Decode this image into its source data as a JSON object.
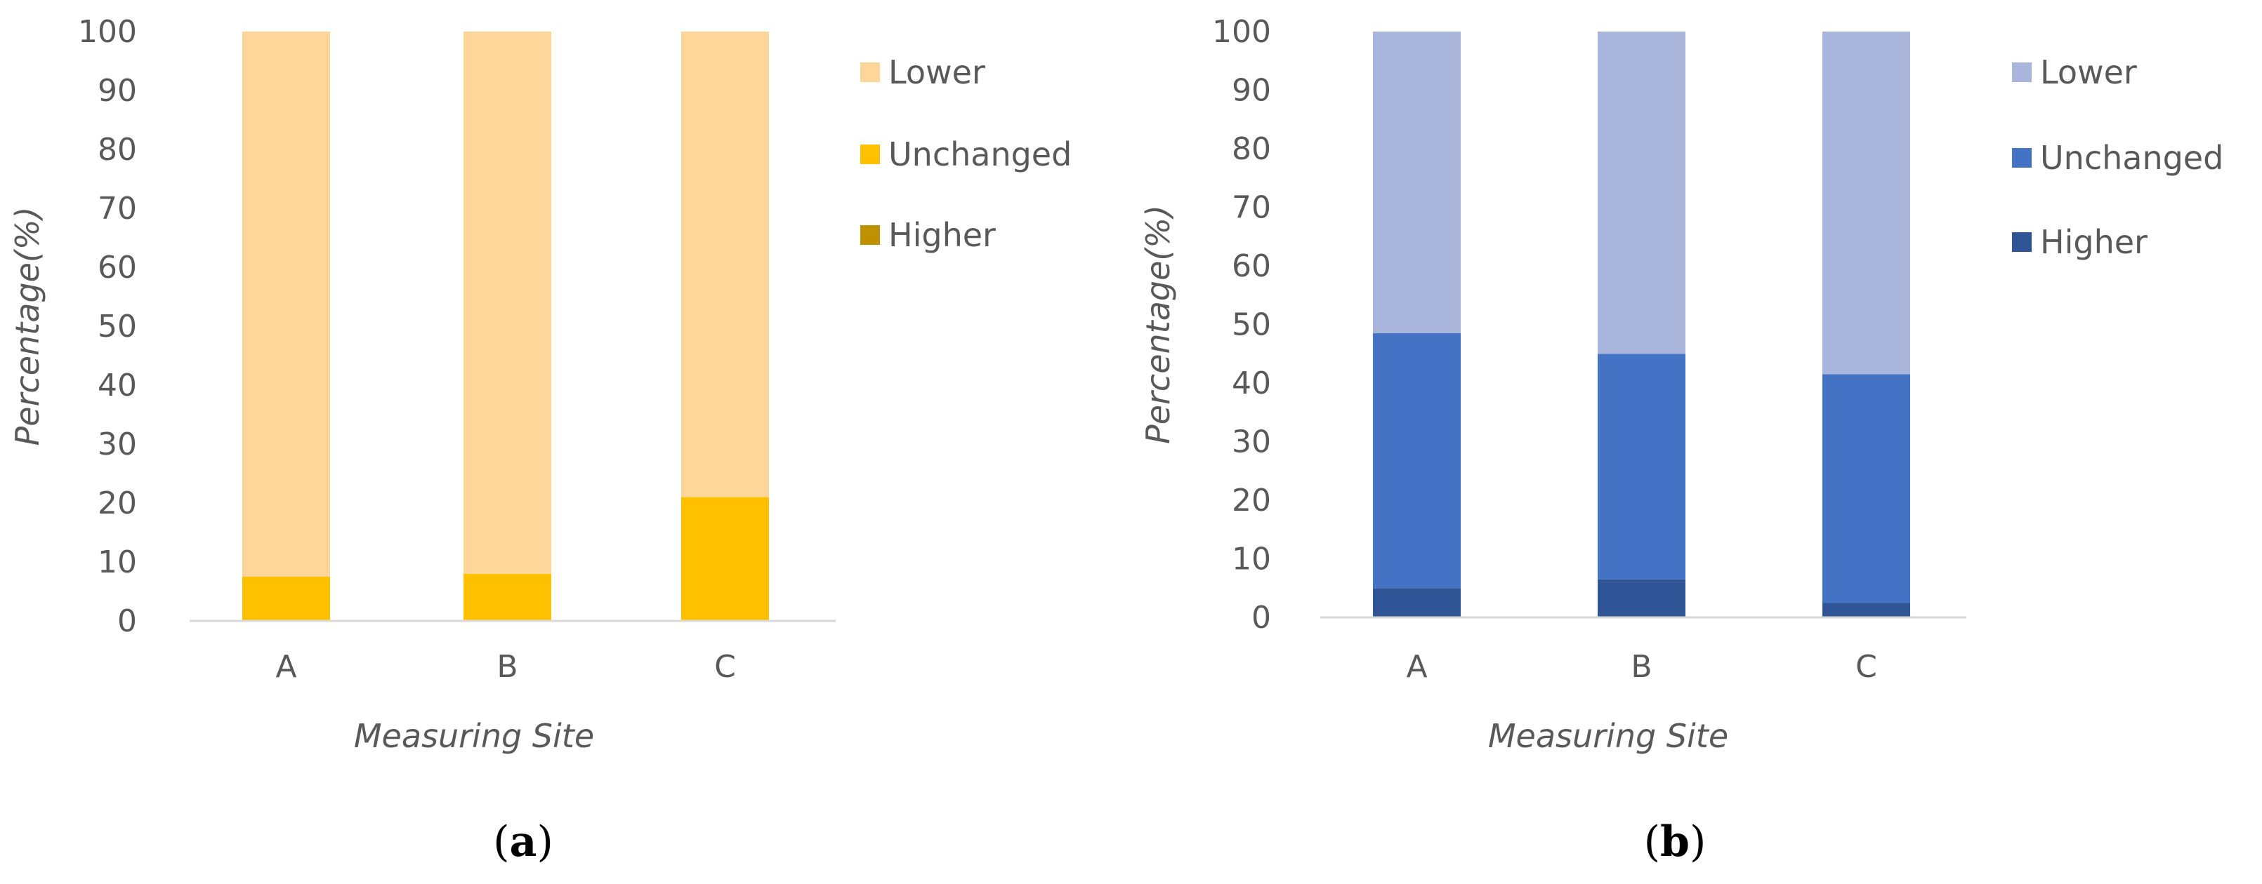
{
  "chart_data": [
    {
      "type": "bar",
      "stacked": true,
      "panel_label": "a",
      "categories": [
        "A",
        "B",
        "C"
      ],
      "series": [
        {
          "name": "Higher",
          "values": [
            0,
            0,
            0
          ],
          "color": "#BF9000"
        },
        {
          "name": "Unchanged",
          "values": [
            7.5,
            8,
            21
          ],
          "color": "#FFC000"
        },
        {
          "name": "Lower",
          "values": [
            92.5,
            92,
            79
          ],
          "color": "#FFD699"
        }
      ],
      "legend_order": [
        "Lower",
        "Unchanged",
        "Higher"
      ],
      "xlabel": "Measuring Site",
      "ylabel": "Percentage(%)",
      "ylim": [
        0,
        100
      ],
      "yticks": [
        0,
        10,
        20,
        30,
        40,
        50,
        60,
        70,
        80,
        90,
        100
      ],
      "grid": false,
      "legend_position": "right"
    },
    {
      "type": "bar",
      "stacked": true,
      "panel_label": "b",
      "categories": [
        "A",
        "B",
        "C"
      ],
      "series": [
        {
          "name": "Higher",
          "values": [
            5,
            6.5,
            2.5
          ],
          "color": "#2F5597"
        },
        {
          "name": "Unchanged",
          "values": [
            43.5,
            38.5,
            39
          ],
          "color": "#4472C4"
        },
        {
          "name": "Lower",
          "values": [
            51.5,
            55,
            58.5
          ],
          "color": "#A9B5DA"
        }
      ],
      "legend_order": [
        "Lower",
        "Unchanged",
        "Higher"
      ],
      "xlabel": "Measuring Site",
      "ylabel": "Percentage(%)",
      "ylim": [
        0,
        100
      ],
      "yticks": [
        0,
        10,
        20,
        30,
        40,
        50,
        60,
        70,
        80,
        90,
        100
      ],
      "grid": false,
      "legend_position": "right"
    }
  ]
}
